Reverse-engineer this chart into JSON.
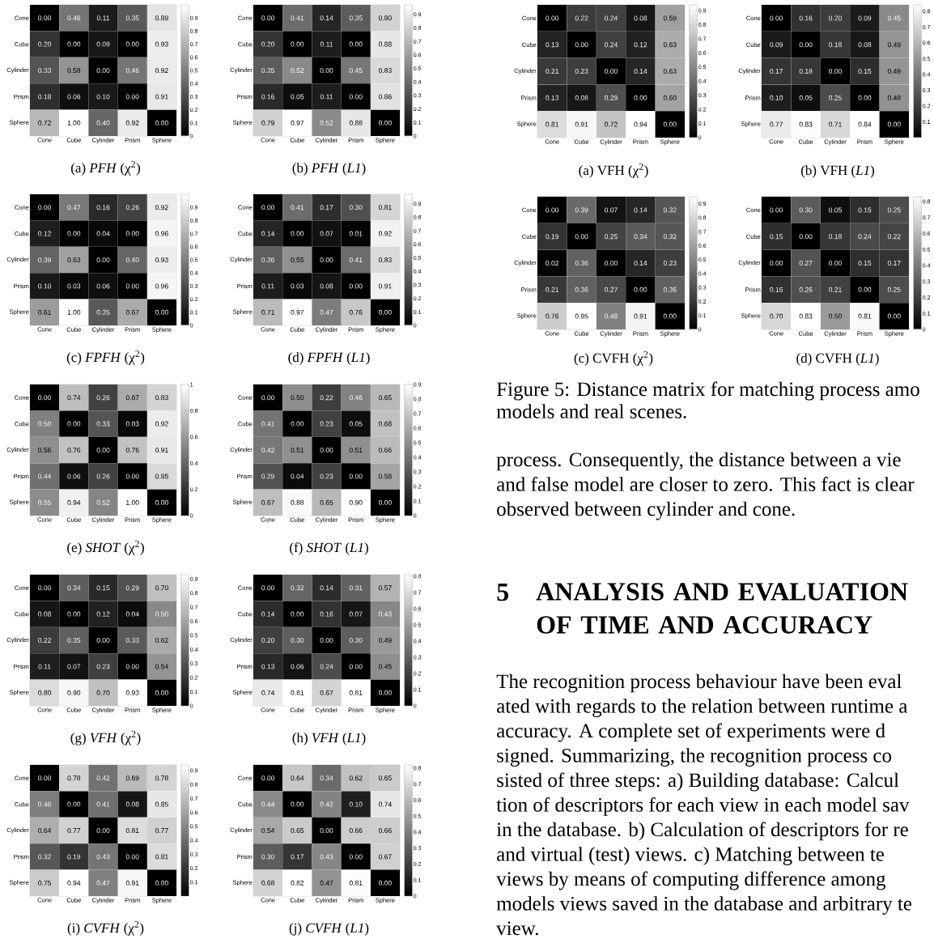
{
  "chart_data": [
    {
      "type": "heatmap",
      "title": "(a) *PFH* (χ$^{2}$)",
      "categories": [
        "Cone",
        "Cube",
        "Cylinder",
        "Prism",
        "Sphere"
      ],
      "y_categories": [
        "Cone",
        "Cube",
        "Cylinder",
        "Prism",
        "Sphere"
      ],
      "cells": [
        [
          0,
          0.46,
          0.11,
          0.35,
          0.89
        ],
        [
          0.2,
          0,
          0.09,
          0,
          0.93
        ],
        [
          0.33,
          0.58,
          0,
          0.46,
          0.92
        ],
        [
          0.18,
          0.06,
          0.1,
          0,
          0.91
        ],
        [
          0.72,
          1,
          0.4,
          0.92,
          0
        ]
      ],
      "cell_labels": [
        [
          "0.00",
          "0.46",
          "0.11",
          "0.35",
          "0.89"
        ],
        [
          "0.20",
          "0.00",
          "0.09",
          "0.00",
          "0.93"
        ],
        [
          "0.33",
          "0.58",
          "0.00",
          "0.46",
          "0.92"
        ],
        [
          "0.18",
          "0.06",
          "0.10",
          "0.00",
          "0.91"
        ],
        [
          "0.72",
          "1.00",
          "0.40",
          "0.92",
          "0.00"
        ]
      ],
      "clim": [
        0,
        1
      ],
      "cticks": [
        0,
        0.1,
        0.2,
        0.3,
        0.4,
        0.5,
        0.6,
        0.7,
        0.8,
        0.9
      ]
    },
    {
      "type": "heatmap",
      "title": "(b) *PFH* (*L1*)",
      "categories": [
        "Cone",
        "Cube",
        "Cylinder",
        "Prism",
        "Sphere"
      ],
      "y_categories": [
        "Cone",
        "Cube",
        "Cylinder",
        "Prism",
        "Sphere"
      ],
      "cells": [
        [
          0,
          0.41,
          0.14,
          0.35,
          0.8
        ],
        [
          0.2,
          0,
          0.11,
          0,
          0.88
        ],
        [
          0.35,
          0.52,
          0,
          0.45,
          0.83
        ],
        [
          0.16,
          0.05,
          0.11,
          0,
          0.86
        ],
        [
          0.79,
          0.97,
          0.52,
          0.88,
          0
        ]
      ],
      "cell_labels": [
        [
          "0.00",
          "0.41",
          "0.14",
          "0.35",
          "0.80"
        ],
        [
          "0.20",
          "0.00",
          "0.11",
          "0.00",
          "0.88"
        ],
        [
          "0.35",
          "0.52",
          "0.00",
          "0.45",
          "0.83"
        ],
        [
          "0.16",
          "0.05",
          "0.11",
          "0.00",
          "0.86"
        ],
        [
          "0.79",
          "0.97",
          "0.52",
          "0.88",
          "0.00"
        ]
      ],
      "clim": [
        0,
        0.97
      ],
      "cticks": [
        0,
        0.1,
        0.2,
        0.3,
        0.4,
        0.5,
        0.6,
        0.7,
        0.8,
        0.9
      ]
    },
    {
      "type": "heatmap",
      "title": "(c) *FPFH* (χ$^{2}$)",
      "categories": [
        "Cone",
        "Cube",
        "Cylinder",
        "Prism",
        "Sphere"
      ],
      "y_categories": [
        "Cone",
        "Cube",
        "Cylinder",
        "Prism",
        "Sphere"
      ],
      "cells": [
        [
          0,
          0.47,
          0.16,
          0.26,
          0.92
        ],
        [
          0.12,
          0,
          0.04,
          0,
          0.96
        ],
        [
          0.39,
          0.63,
          0,
          0.4,
          0.93
        ],
        [
          0.1,
          0.03,
          0.06,
          0,
          0.96
        ],
        [
          0.61,
          1,
          0.35,
          0.67,
          0
        ]
      ],
      "cell_labels": [
        [
          "0.00",
          "0.47",
          "0.16",
          "0.26",
          "0.92"
        ],
        [
          "0.12",
          "0.00",
          "0.04",
          "0.00",
          "0.96"
        ],
        [
          "0.39",
          "0.63",
          "0.00",
          "0.40",
          "0.93"
        ],
        [
          "0.10",
          "0.03",
          "0.06",
          "0.00",
          "0.96"
        ],
        [
          "0.61",
          "1.00",
          "0.35",
          "0.67",
          "0.00"
        ]
      ],
      "clim": [
        0,
        1
      ],
      "cticks": [
        0,
        0.1,
        0.2,
        0.3,
        0.4,
        0.5,
        0.6,
        0.7,
        0.8,
        0.9
      ]
    },
    {
      "type": "heatmap",
      "title": "(d) *FPFH* (*L1*)",
      "categories": [
        "Cone",
        "Cube",
        "Cylinder",
        "Prism",
        "Sphere"
      ],
      "y_categories": [
        "Cone",
        "Cube",
        "Cylinder",
        "Prism",
        "Sphere"
      ],
      "cells": [
        [
          0,
          0.41,
          0.17,
          0.3,
          0.81
        ],
        [
          0.14,
          0,
          0.07,
          0.01,
          0.92
        ],
        [
          0.36,
          0.55,
          0,
          0.41,
          0.83
        ],
        [
          0.11,
          0.03,
          0.08,
          0,
          0.91
        ],
        [
          0.71,
          0.97,
          0.47,
          0.76,
          0
        ]
      ],
      "cell_labels": [
        [
          "0.00",
          "0.41",
          "0.17",
          "0.30",
          "0.81"
        ],
        [
          "0.14",
          "0.00",
          "0.07",
          "0.01",
          "0.92"
        ],
        [
          "0.36",
          "0.55",
          "0.00",
          "0.41",
          "0.83"
        ],
        [
          "0.11",
          "0.03",
          "0.08",
          "0.00",
          "0.91"
        ],
        [
          "0.71",
          "0.97",
          "0.47",
          "0.76",
          "0.00"
        ]
      ],
      "clim": [
        0,
        0.97
      ],
      "cticks": [
        0,
        0.1,
        0.2,
        0.3,
        0.4,
        0.5,
        0.6,
        0.7,
        0.8,
        0.9
      ]
    },
    {
      "type": "heatmap",
      "title": "(e) *SHOT* (χ$^{2}$)",
      "categories": [
        "Cone",
        "Cube",
        "Cylinder",
        "Prism",
        "Sphere"
      ],
      "y_categories": [
        "Cone",
        "Cube",
        "Cylinder",
        "Prism",
        "Sphere"
      ],
      "cells": [
        [
          0,
          0.74,
          0.26,
          0.67,
          0.83
        ],
        [
          0.5,
          0,
          0.33,
          0.03,
          0.92
        ],
        [
          0.56,
          0.76,
          0,
          0.76,
          0.91
        ],
        [
          0.44,
          0.06,
          0.26,
          0,
          0.85
        ],
        [
          0.55,
          0.94,
          0.52,
          1,
          0
        ]
      ],
      "cell_labels": [
        [
          "0.00",
          "0.74",
          "0.26",
          "0.67",
          "0.83"
        ],
        [
          "0.50",
          "0.00",
          "0.33",
          "0.03",
          "0.92"
        ],
        [
          "0.56",
          "0.76",
          "0.00",
          "0.76",
          "0.91"
        ],
        [
          "0.44",
          "0.06",
          "0.26",
          "0.00",
          "0.85"
        ],
        [
          "0.55",
          "0.94",
          "0.52",
          "1.00",
          "0.00"
        ]
      ],
      "clim": [
        0,
        1
      ],
      "cticks": [
        0,
        0.2,
        0.4,
        0.6,
        0.8,
        1
      ]
    },
    {
      "type": "heatmap",
      "title": "(f) *SHOT* (*L1*)",
      "categories": [
        "Cone",
        "Cube",
        "Cylinder",
        "Prism",
        "Sphere"
      ],
      "y_categories": [
        "Cone",
        "Cube",
        "Cylinder",
        "Prism",
        "Sphere"
      ],
      "cells": [
        [
          0,
          0.5,
          0.22,
          0.46,
          0.65
        ],
        [
          0.41,
          0,
          0.23,
          0.05,
          0.68
        ],
        [
          0.42,
          0.51,
          0,
          0.51,
          0.66
        ],
        [
          0.29,
          0.04,
          0.23,
          0,
          0.58
        ],
        [
          0.67,
          0.88,
          0.65,
          0.9,
          0
        ]
      ],
      "cell_labels": [
        [
          "0.00",
          "0.50",
          "0.22",
          "0.46",
          "0.65"
        ],
        [
          "0.41",
          "0.00",
          "0.23",
          "0.05",
          "0.68"
        ],
        [
          "0.42",
          "0.51",
          "0.00",
          "0.51",
          "0.66"
        ],
        [
          "0.29",
          "0.04",
          "0.23",
          "0.00",
          "0.58"
        ],
        [
          "0.67",
          "0.88",
          "0.65",
          "0.90",
          "0.00"
        ]
      ],
      "clim": [
        0,
        0.9
      ],
      "cticks": [
        0,
        0.1,
        0.2,
        0.3,
        0.4,
        0.5,
        0.6,
        0.7,
        0.8,
        0.9
      ]
    },
    {
      "type": "heatmap",
      "title": "(g) *VFH* (χ$^{2}$)",
      "categories": [
        "Cone",
        "Cube",
        "Cylinder",
        "Prism",
        "Sphere"
      ],
      "y_categories": [
        "Cone",
        "Cube",
        "Cylinder",
        "Prism",
        "Sphere"
      ],
      "cells": [
        [
          0,
          0.34,
          0.15,
          0.29,
          0.7
        ],
        [
          0.08,
          0,
          0.12,
          0.04,
          0.5
        ],
        [
          0.22,
          0.35,
          0,
          0.33,
          0.62
        ],
        [
          0.11,
          0.07,
          0.23,
          0,
          0.54
        ],
        [
          0.8,
          0.9,
          0.7,
          0.93,
          0
        ]
      ],
      "cell_labels": [
        [
          "0.00",
          "0.34",
          "0.15",
          "0.29",
          "0.70"
        ],
        [
          "0.08",
          "0.00",
          "0.12",
          "0.04",
          "0.50"
        ],
        [
          "0.22",
          "0.35",
          "0.00",
          "0.33",
          "0.62"
        ],
        [
          "0.11",
          "0.07",
          "0.23",
          "0.00",
          "0.54"
        ],
        [
          "0.80",
          "0.90",
          "0.70",
          "0.93",
          "0.00"
        ]
      ],
      "clim": [
        0,
        0.93
      ],
      "cticks": [
        0,
        0.1,
        0.2,
        0.3,
        0.4,
        0.5,
        0.6,
        0.7,
        0.8,
        0.9
      ]
    },
    {
      "type": "heatmap",
      "title": "(h) *VFH* (*L1*)",
      "categories": [
        "Cone",
        "Cube",
        "Cylinder",
        "Prism",
        "Sphere"
      ],
      "y_categories": [
        "Cone",
        "Cube",
        "Cylinder",
        "Prism",
        "Sphere"
      ],
      "cells": [
        [
          0,
          0.32,
          0.14,
          0.31,
          0.57
        ],
        [
          0.14,
          0,
          0.16,
          0.07,
          0.43
        ],
        [
          0.2,
          0.3,
          0,
          0.3,
          0.49
        ],
        [
          0.13,
          0.06,
          0.24,
          0,
          0.45
        ],
        [
          0.74,
          0.81,
          0.67,
          0.81,
          0
        ]
      ],
      "cell_labels": [
        [
          "0.00",
          "0.32",
          "0.14",
          "0.31",
          "0.57"
        ],
        [
          "0.14",
          "0.00",
          "0.16",
          "0.07",
          "0.43"
        ],
        [
          "0.20",
          "0.30",
          "0.00",
          "0.30",
          "0.49"
        ],
        [
          "0.13",
          "0.06",
          "0.24",
          "0.00",
          "0.45"
        ],
        [
          "0.74",
          "0.81",
          "0.67",
          "0.81",
          "0.00"
        ]
      ],
      "clim": [
        0,
        0.81
      ],
      "cticks": [
        0,
        0.1,
        0.2,
        0.3,
        0.4,
        0.5,
        0.6,
        0.7,
        0.8
      ]
    },
    {
      "type": "heatmap",
      "title": "(i) *CVFH* (χ$^{2}$)",
      "categories": [
        "Cone",
        "Cube",
        "Cylinder",
        "Prism",
        "Sphere"
      ],
      "y_categories": [
        "Cone",
        "Cube",
        "Cylinder",
        "Prism",
        "Sphere"
      ],
      "cells": [
        [
          0,
          0.78,
          0.42,
          0.69,
          0.78
        ],
        [
          0.46,
          0,
          0.41,
          0.08,
          0.85
        ],
        [
          0.64,
          0.77,
          0,
          0.81,
          0.77
        ],
        [
          0.32,
          0.19,
          0.43,
          0,
          0.81
        ],
        [
          0.75,
          0.94,
          0.47,
          0.91,
          0
        ]
      ],
      "cell_labels": [
        [
          "0.00",
          "0.78",
          "0.42",
          "0.69",
          "0.78"
        ],
        [
          "0.46",
          "0.00",
          "0.41",
          "0.08",
          "0.85"
        ],
        [
          "0.64",
          "0.77",
          "0.00",
          "0.81",
          "0.77"
        ],
        [
          "0.32",
          "0.19",
          "0.43",
          "0.00",
          "0.81"
        ],
        [
          "0.75",
          "0.94",
          "0.47",
          "0.91",
          "0.00"
        ]
      ],
      "clim": [
        0,
        0.94
      ],
      "cticks": [
        0.1,
        0.2,
        0.3,
        0.4,
        0.5,
        0.6,
        0.7,
        0.8,
        0.9
      ]
    },
    {
      "type": "heatmap",
      "title": "(j) *CVFH* (*L1*)",
      "categories": [
        "Cone",
        "Cube",
        "Cylinder",
        "Prism",
        "Sphere"
      ],
      "y_categories": [
        "Cone",
        "Cube",
        "Cylinder",
        "Prism",
        "Sphere"
      ],
      "cells": [
        [
          0,
          0.64,
          0.34,
          0.62,
          0.65
        ],
        [
          0.44,
          0,
          0.42,
          0.1,
          0.74
        ],
        [
          0.54,
          0.65,
          0,
          0.66,
          0.66
        ],
        [
          0.3,
          0.17,
          0.43,
          0,
          0.67
        ],
        [
          0.68,
          0.82,
          0.47,
          0.81,
          0
        ]
      ],
      "cell_labels": [
        [
          "0.00",
          "0.64",
          "0.34",
          "0.62",
          "0.65"
        ],
        [
          "0.44",
          "0.00",
          "0.42",
          "0.10",
          "0.74"
        ],
        [
          "0.54",
          "0.65",
          "0.00",
          "0.66",
          "0.66"
        ],
        [
          "0.30",
          "0.17",
          "0.43",
          "0.00",
          "0.67"
        ],
        [
          "0.68",
          "0.82",
          "0.47",
          "0.81",
          "0.00"
        ]
      ],
      "clim": [
        0,
        0.82
      ],
      "cticks": [
        0,
        0.1,
        0.2,
        0.3,
        0.4,
        0.5,
        0.6,
        0.7,
        0.8
      ]
    },
    {
      "type": "heatmap",
      "title": "(a) VFH (χ$^{2}$)",
      "categories": [
        "Cone",
        "Cube",
        "Cylinder",
        "Prism",
        "Sphere"
      ],
      "y_categories": [
        "Cone",
        "Cube",
        "Cylinder",
        "Prism",
        "Sphere"
      ],
      "cells": [
        [
          0,
          0.22,
          0.24,
          0.08,
          0.59
        ],
        [
          0.13,
          0,
          0.24,
          0.12,
          0.63
        ],
        [
          0.21,
          0.23,
          0,
          0.14,
          0.63
        ],
        [
          0.13,
          0.08,
          0.29,
          0,
          0.6
        ],
        [
          0.81,
          0.91,
          0.72,
          0.94,
          0
        ]
      ],
      "cell_labels": [
        [
          "0.00",
          "0.22",
          "0.24",
          "0.08",
          "0.59"
        ],
        [
          "0.13",
          "0.00",
          "0.24",
          "0.12",
          "0.63"
        ],
        [
          "0.21",
          "0.23",
          "0.00",
          "0.14",
          "0.63"
        ],
        [
          "0.13",
          "0.08",
          "0.29",
          "0.00",
          "0.60"
        ],
        [
          "0.81",
          "0.91",
          "0.72",
          "0.94",
          "0.00"
        ]
      ],
      "clim": [
        0,
        0.94
      ],
      "cticks": [
        0,
        0.1,
        0.2,
        0.3,
        0.4,
        0.5,
        0.6,
        0.7,
        0.8,
        0.9
      ]
    },
    {
      "type": "heatmap",
      "title": "(b) VFH (*L1*)",
      "categories": [
        "Cone",
        "Cube",
        "Cylinder",
        "Prism",
        "Sphere"
      ],
      "y_categories": [
        "Cone",
        "Cube",
        "Cylinder",
        "Prism",
        "Sphere"
      ],
      "cells": [
        [
          0,
          0.16,
          0.2,
          0.09,
          0.45
        ],
        [
          0.09,
          0,
          0.18,
          0.08,
          0.49
        ],
        [
          0.17,
          0.18,
          0,
          0.15,
          0.49
        ],
        [
          0.1,
          0.05,
          0.25,
          0,
          0.48
        ],
        [
          0.77,
          0.83,
          0.71,
          0.84,
          0
        ]
      ],
      "cell_labels": [
        [
          "0.00",
          "0.16",
          "0.20",
          "0.09",
          "0.45"
        ],
        [
          "0.09",
          "0.00",
          "0.18",
          "0.08",
          "0.49"
        ],
        [
          "0.17",
          "0.18",
          "0.00",
          "0.15",
          "0.49"
        ],
        [
          "0.10",
          "0.05",
          "0.25",
          "0.00",
          "0.48"
        ],
        [
          "0.77",
          "0.83",
          "0.71",
          "0.84",
          "0.00"
        ]
      ],
      "clim": [
        0,
        0.84
      ],
      "cticks": [
        0.1,
        0.2,
        0.3,
        0.4,
        0.5,
        0.6,
        0.7,
        0.8
      ]
    },
    {
      "type": "heatmap",
      "title": "(c) CVFH (χ$^{2}$)",
      "categories": [
        "Cone",
        "Cube",
        "Cylinder",
        "Prism",
        "Sphere"
      ],
      "y_categories": [
        "Cone",
        "Cube",
        "Cylinder",
        "Prism",
        "Sphere"
      ],
      "cells": [
        [
          0,
          0.39,
          0.07,
          0.14,
          0.32
        ],
        [
          0.19,
          0,
          0.25,
          0.34,
          0.32
        ],
        [
          0.02,
          0.36,
          0,
          0.14,
          0.23
        ],
        [
          0.21,
          0.36,
          0.27,
          0,
          0.36
        ],
        [
          0.76,
          0.95,
          0.48,
          0.91,
          0
        ]
      ],
      "cell_labels": [
        [
          "0.00",
          "0.39",
          "0.07",
          "0.14",
          "0.32"
        ],
        [
          "0.19",
          "0.00",
          "0.25",
          "0.34",
          "0.32"
        ],
        [
          "0.02",
          "0.36",
          "0.00",
          "0.14",
          "0.23"
        ],
        [
          "0.21",
          "0.36",
          "0.27",
          "0.00",
          "0.36"
        ],
        [
          "0.76",
          "0.95",
          "0.48",
          "0.91",
          "0.00"
        ]
      ],
      "clim": [
        0,
        0.95
      ],
      "cticks": [
        0,
        0.1,
        0.2,
        0.3,
        0.4,
        0.5,
        0.6,
        0.7,
        0.8,
        0.9
      ]
    },
    {
      "type": "heatmap",
      "title": "(d) CVFH (*L1*)",
      "categories": [
        "Cone",
        "Cube",
        "Cylinder",
        "Prism",
        "Sphere"
      ],
      "y_categories": [
        "Cone",
        "Cube",
        "Cylinder",
        "Prism",
        "Sphere"
      ],
      "cells": [
        [
          0,
          0.3,
          0.05,
          0.15,
          0.25
        ],
        [
          0.15,
          0,
          0.18,
          0.24,
          0.22
        ],
        [
          0,
          0.27,
          0,
          0.15,
          0.17
        ],
        [
          0.16,
          0.26,
          0.21,
          0,
          0.25
        ],
        [
          0.7,
          0.83,
          0.5,
          0.81,
          0
        ]
      ],
      "cell_labels": [
        [
          "0.00",
          "0.30",
          "0.05",
          "0.15",
          "0.25"
        ],
        [
          "0.15",
          "0.00",
          "0.18",
          "0.24",
          "0.22"
        ],
        [
          "0.00",
          "0.27",
          "0.00",
          "0.15",
          "0.17"
        ],
        [
          "0.16",
          "0.26",
          "0.21",
          "0.00",
          "0.25"
        ],
        [
          "0.70",
          "0.83",
          "0.50",
          "0.81",
          "0.00"
        ]
      ],
      "clim": [
        0,
        0.83
      ],
      "cticks": [
        0,
        0.1,
        0.2,
        0.3,
        0.4,
        0.5,
        0.6,
        0.7,
        0.8
      ]
    },
    {
      "type": "other",
      "title": "ANALYSIS AND EVALUATION OF TIME AND ACCURACY",
      "annotations": [
        "Figure 5: Distance matrix for matching process amo",
        "models and real scenes.",
        "process. Consequently, the distance between a vie",
        "and false model are closer to zero. This fact is clear",
        "observed between cylinder and cone.",
        "5",
        "The recognition process behaviour have been eval",
        "ated with regards to the relation between runtime a",
        "accuracy. A complete set of experiments were d",
        "signed. Summarizing, the recognition process co",
        "sisted of three steps: a) Building database: Calcul",
        "tion of descriptors for each view in each model sav",
        "in the database. b) Calculation of descriptors for re",
        "and virtual (test) views. c) Matching between te",
        "views by means of computing difference among",
        "models views saved in the database and arbitrary te",
        "view."
      ]
    }
  ]
}
